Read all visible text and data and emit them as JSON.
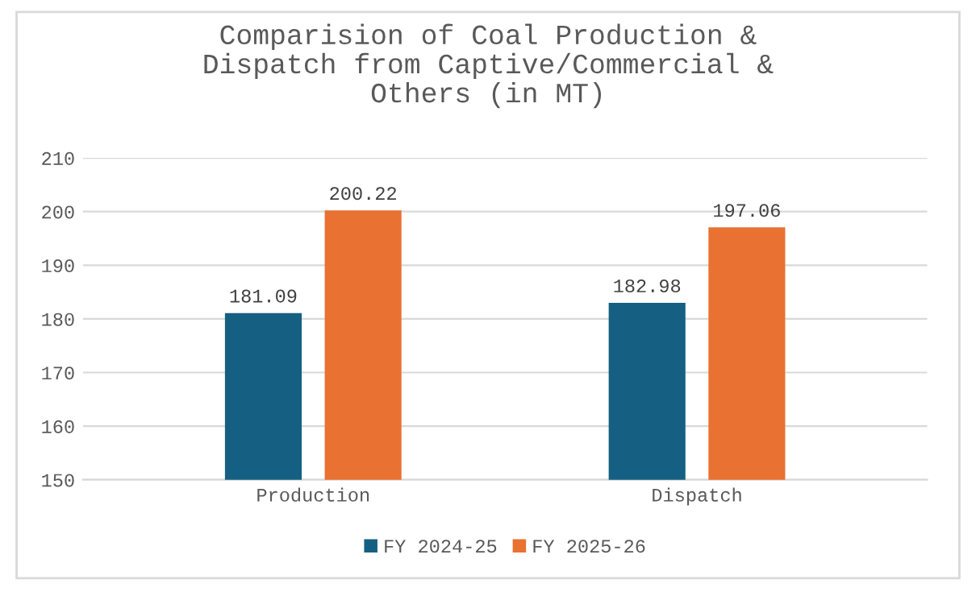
{
  "chart_data": {
    "type": "bar",
    "title": "Comparision of Coal Production &\nDispatch from Captive/Commercial &\nOthers (in MT)",
    "categories": [
      "Production",
      "Dispatch"
    ],
    "series": [
      {
        "name": "FY 2024-25",
        "color": "#156082",
        "values": [
          181.09,
          182.98
        ]
      },
      {
        "name": "FY 2025-26",
        "color": "#e97132",
        "values": [
          200.22,
          197.06
        ]
      }
    ],
    "ylim": [
      150,
      210
    ],
    "yticks": [
      150,
      160,
      170,
      180,
      190,
      200,
      210
    ],
    "grid": "y",
    "legend": "bottom",
    "data_labels": true
  }
}
